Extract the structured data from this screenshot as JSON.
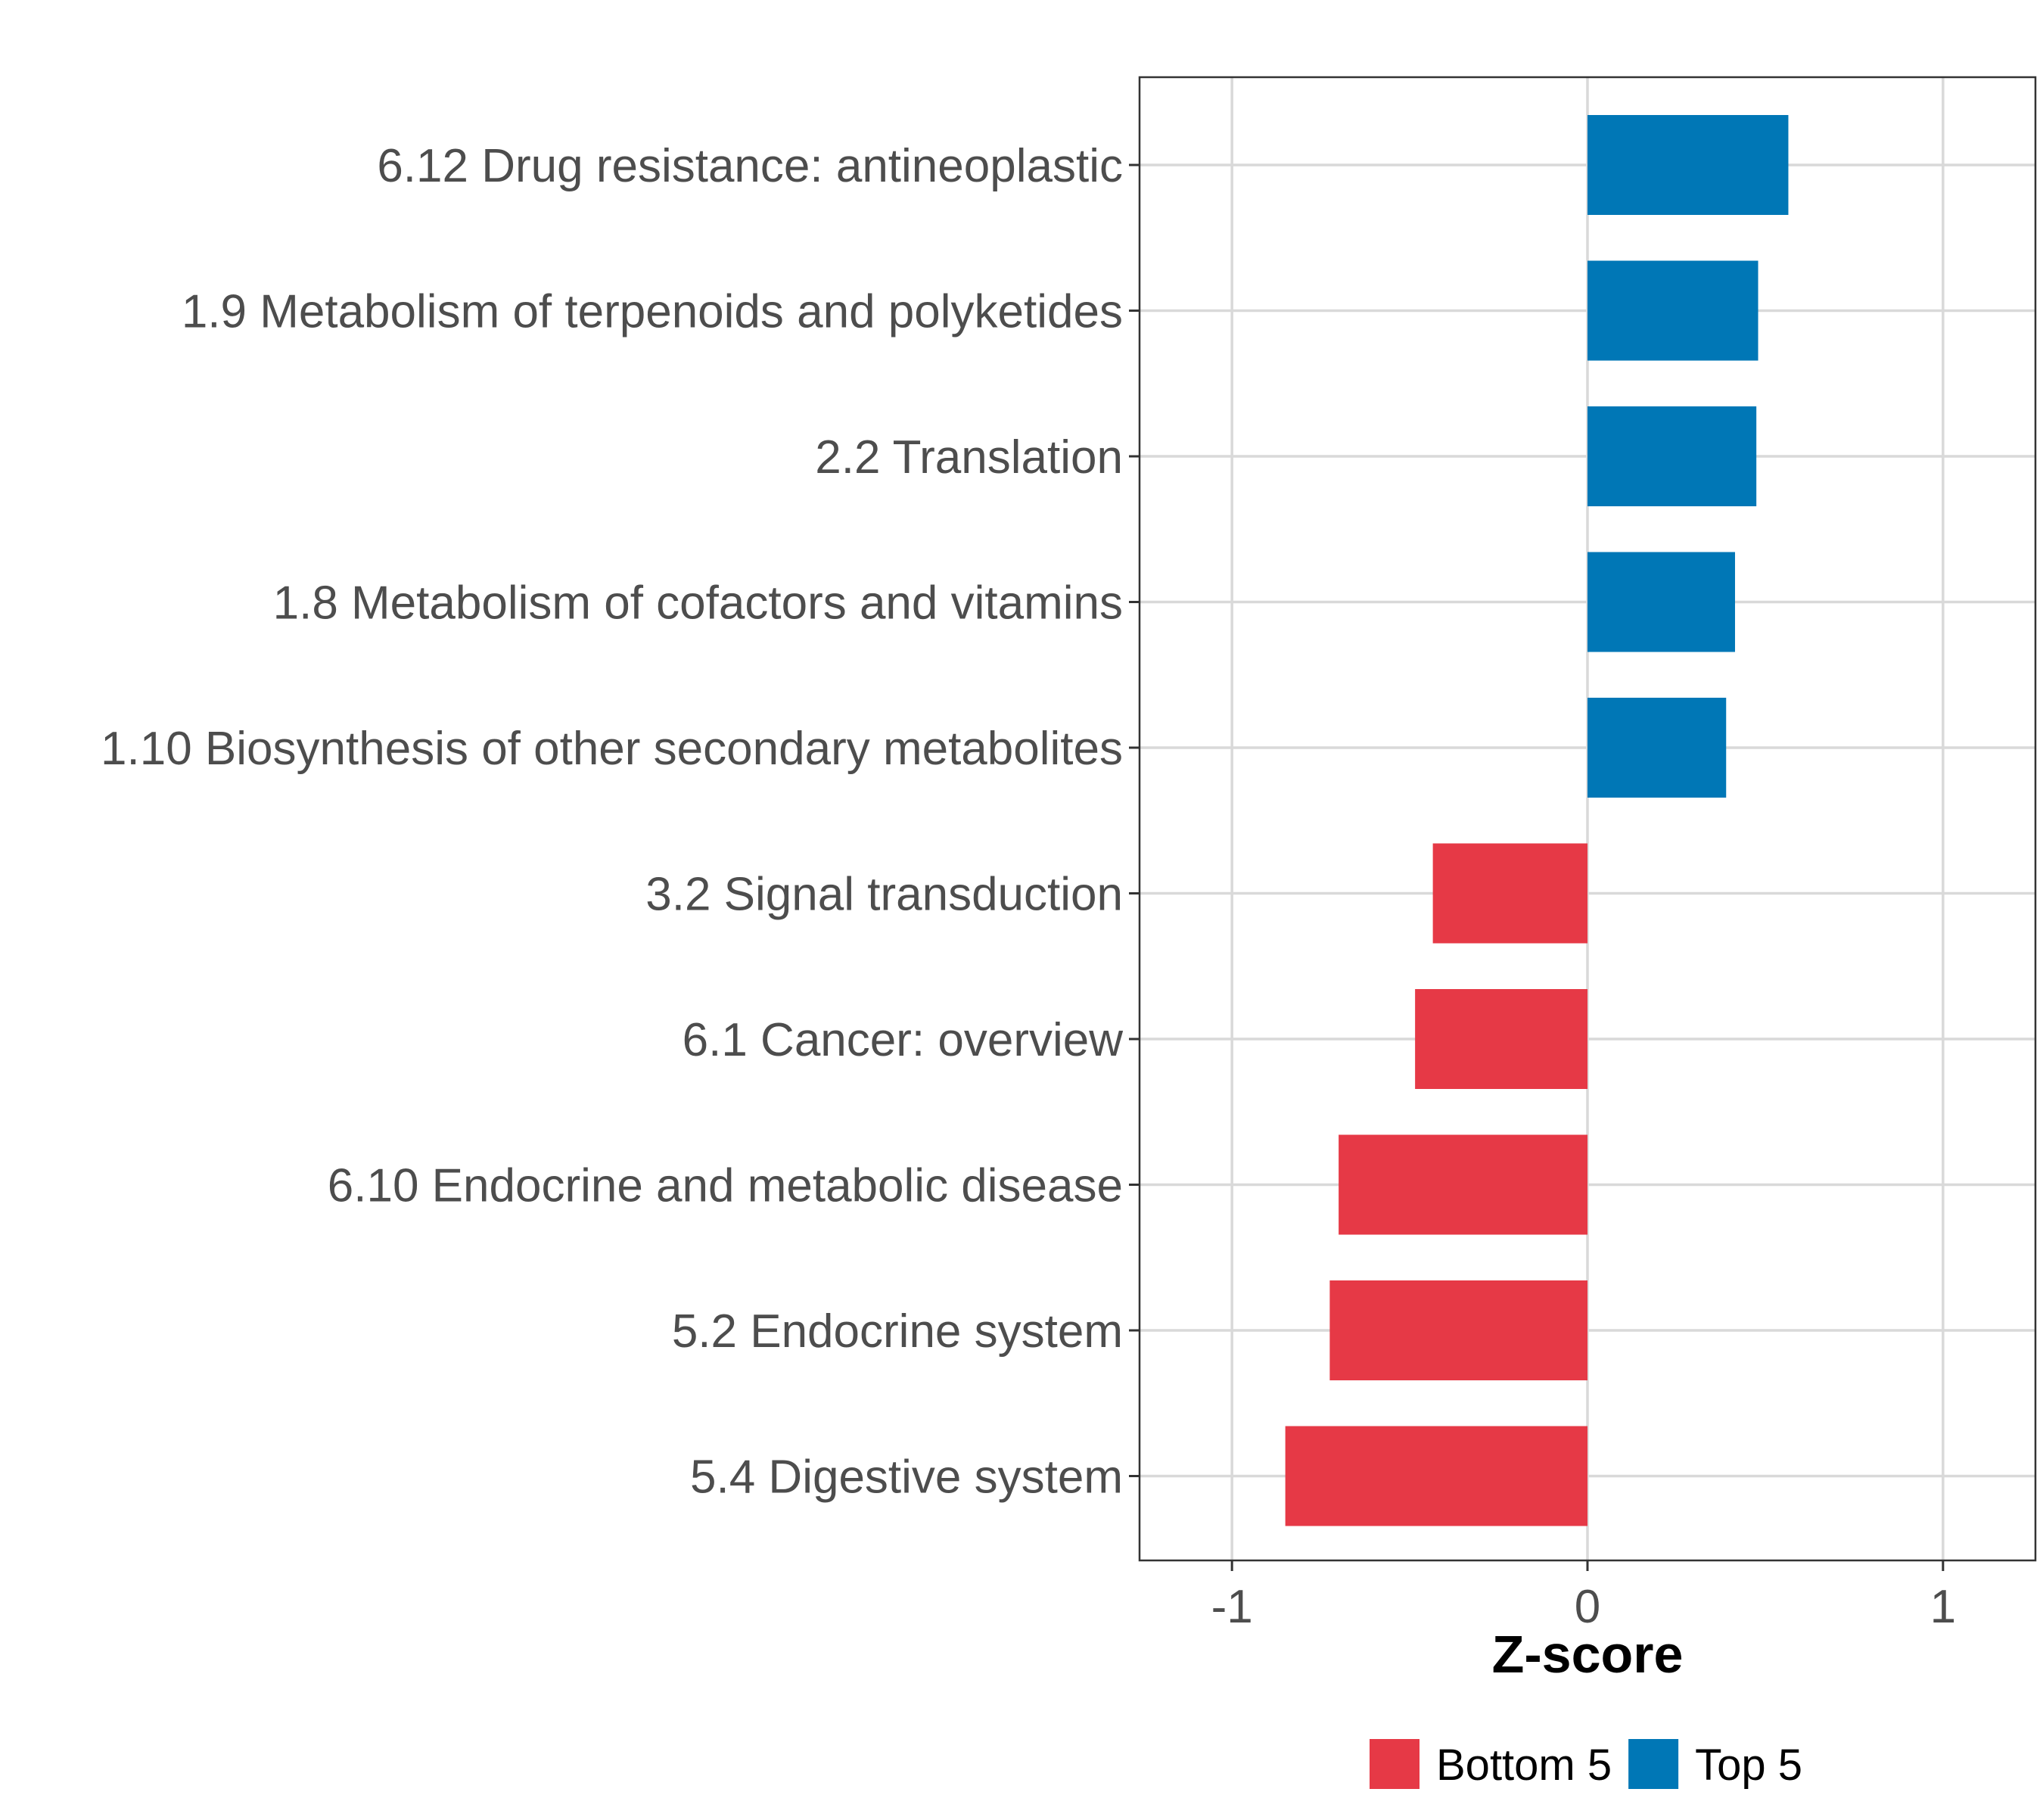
{
  "chart_data": {
    "type": "bar",
    "orientation": "horizontal",
    "title": "",
    "xlabel": "Z-score",
    "ylabel": "",
    "xlim": [
      -1.26,
      1.26
    ],
    "xticks": [
      -1,
      0,
      1
    ],
    "xtick_labels": [
      "-1",
      "0",
      "1"
    ],
    "grid": true,
    "legend_position": "bottom",
    "categories": [
      "6.12 Drug resistance: antineoplastic",
      "1.9 Metabolism of terpenoids and polyketides",
      "2.2 Translation",
      "1.8 Metabolism of cofactors and vitamins",
      "1.10 Biosynthesis of other secondary metabolites",
      "3.2 Signal transduction",
      "6.1 Cancer: overview",
      "6.10 Endocrine and metabolic disease",
      "5.2 Endocrine system",
      "5.4 Digestive system"
    ],
    "values": [
      0.565,
      0.48,
      0.475,
      0.415,
      0.39,
      -0.435,
      -0.485,
      -0.7,
      -0.725,
      -0.85
    ],
    "groups": [
      "Top 5",
      "Top 5",
      "Top 5",
      "Top 5",
      "Top 5",
      "Bottom 5",
      "Bottom 5",
      "Bottom 5",
      "Bottom 5",
      "Bottom 5"
    ],
    "legend": [
      {
        "label": "Bottom 5",
        "color": "#E63946"
      },
      {
        "label": "Top 5",
        "color": "#0077B6"
      }
    ],
    "colors": {
      "Top 5": "#0077B6",
      "Bottom 5": "#E63946",
      "grid": "#d9d9d9",
      "border": "#333333"
    }
  }
}
